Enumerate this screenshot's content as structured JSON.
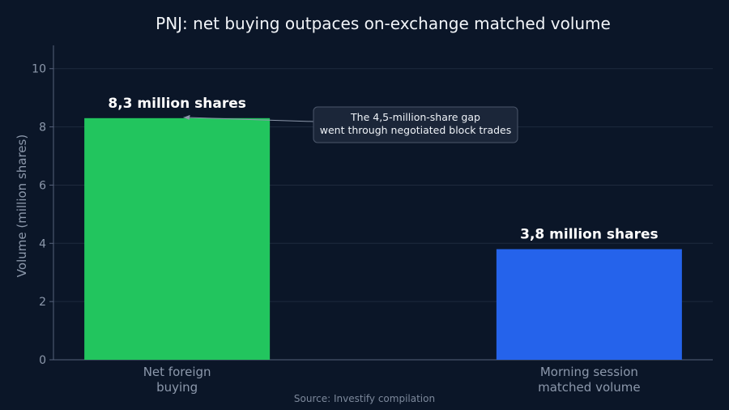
{
  "chart_data": {
    "type": "bar",
    "title": "PNJ: net buying outpaces on-exchange matched volume",
    "xlabel": "",
    "ylabel": "Volume (million shares)",
    "ylim": [
      0,
      10.8
    ],
    "yticks": [
      0,
      2,
      4,
      6,
      8,
      10
    ],
    "grid": true,
    "categories": [
      [
        "Net foreign",
        "buying"
      ],
      [
        "Morning session",
        "matched volume"
      ]
    ],
    "values": [
      8.3,
      3.8
    ],
    "data_labels": [
      "8,3 million shares",
      "3,8 million shares"
    ],
    "colors": [
      "#22c55e",
      "#2563eb"
    ],
    "annotation": {
      "lines": [
        "The 4,5-million-share gap",
        "went through negotiated block trades"
      ],
      "target_category_index": 0,
      "target_value": 8.3
    },
    "source": "Source: Investify compilation"
  }
}
